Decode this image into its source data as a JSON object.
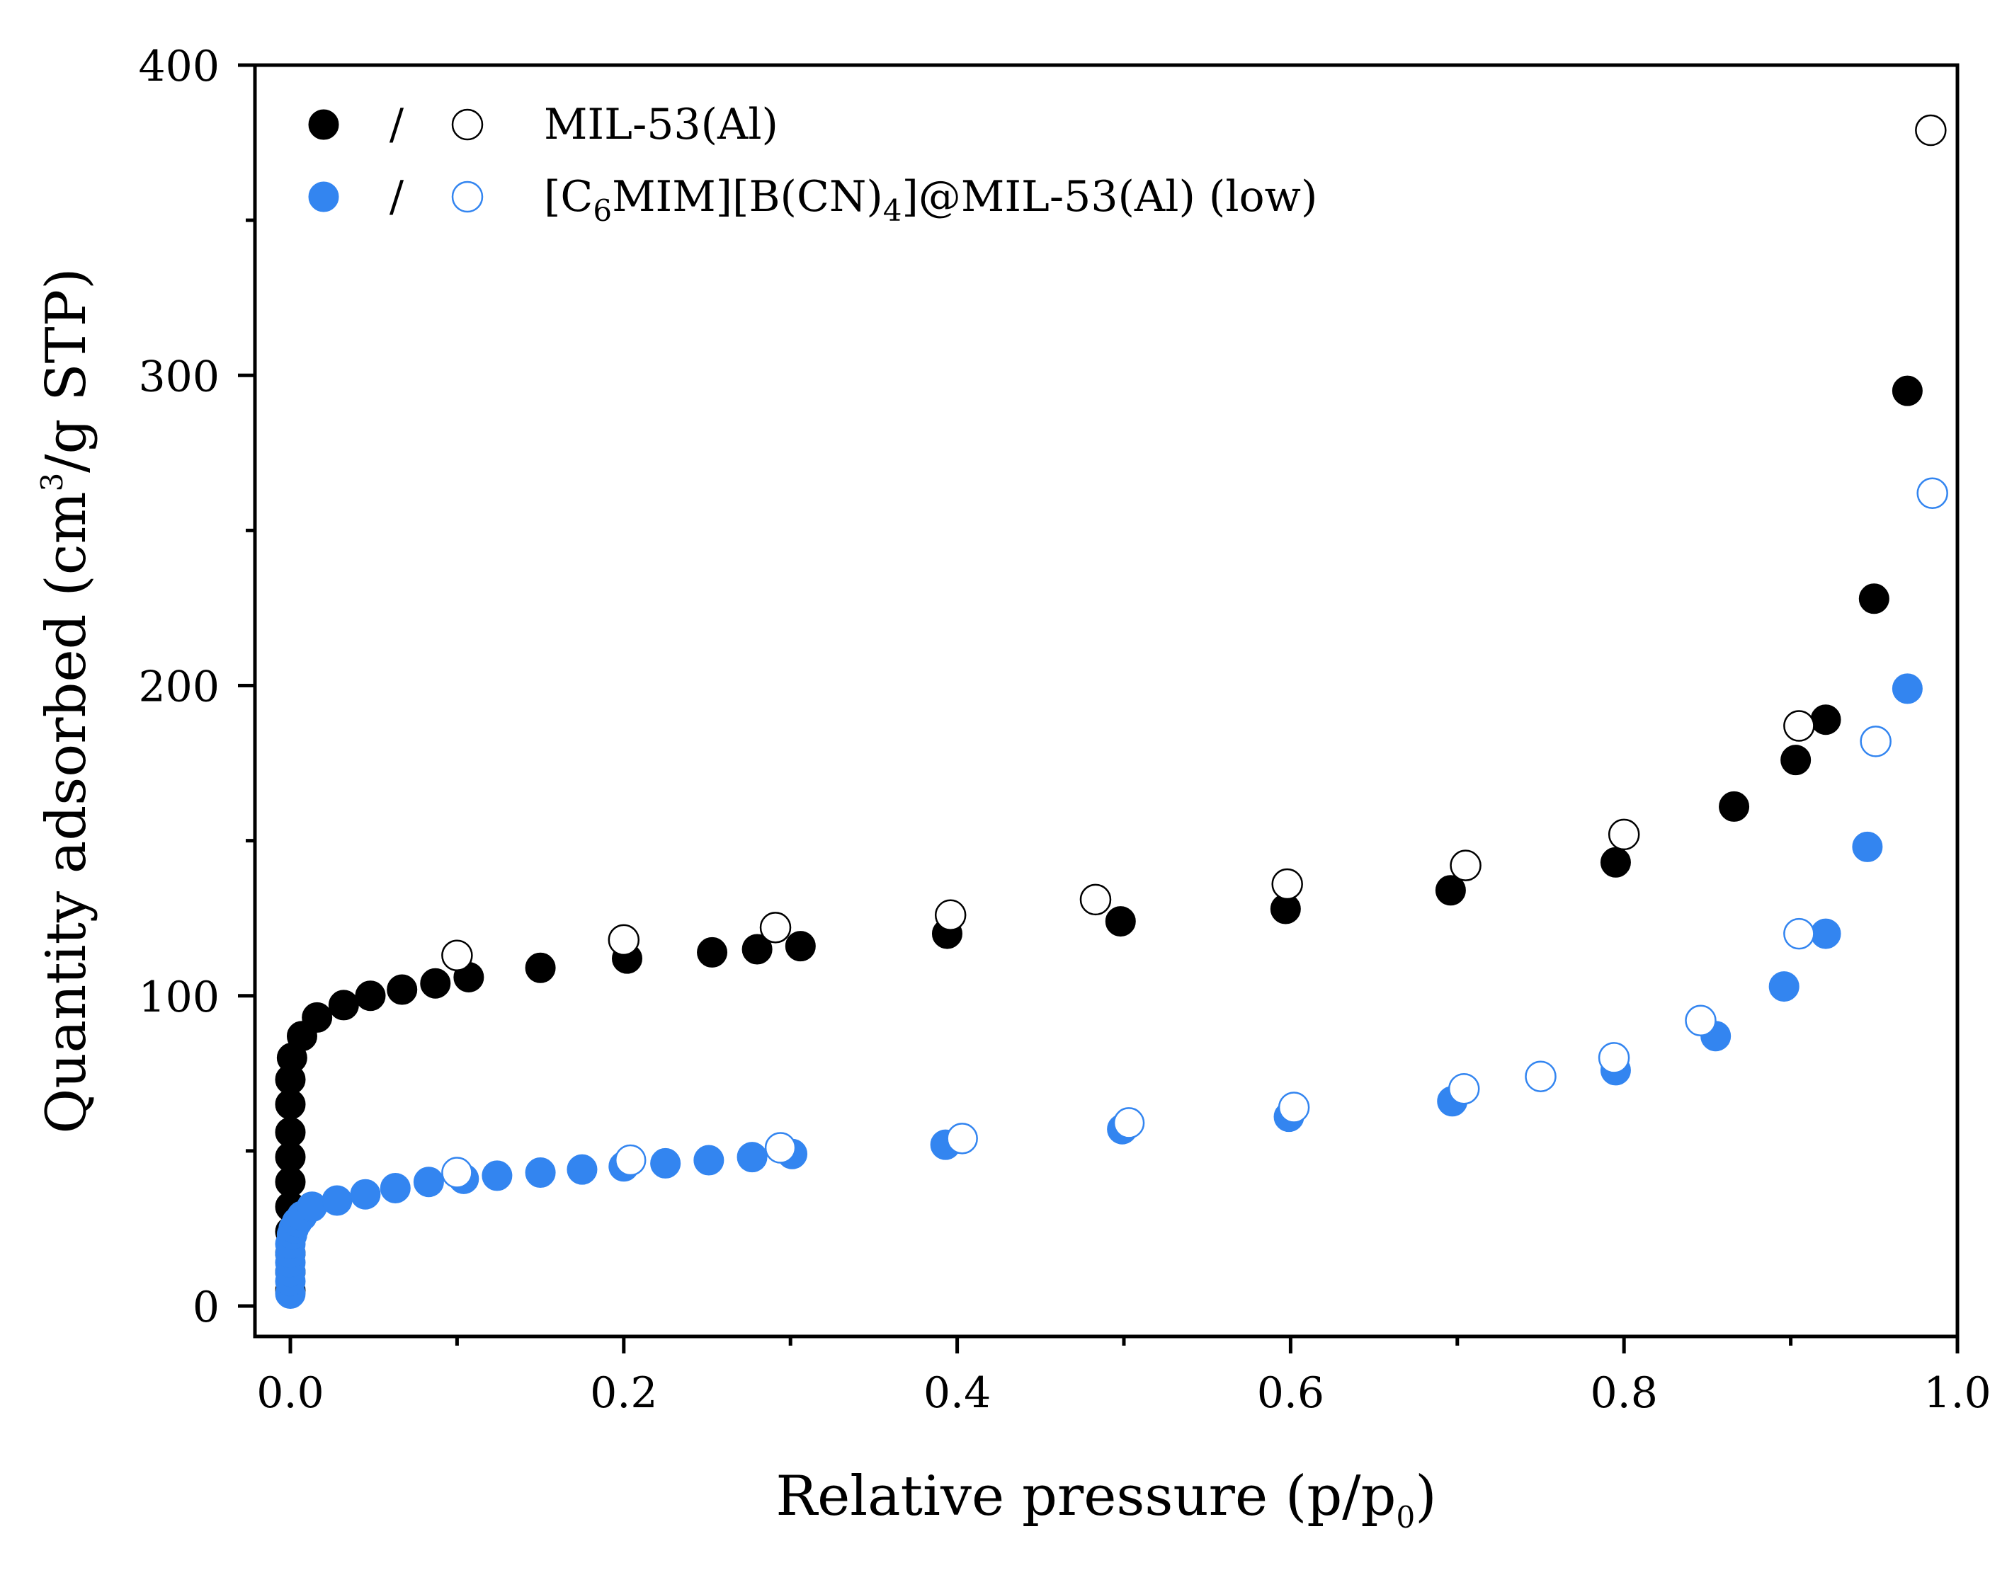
{
  "chart_data": {
    "type": "scatter",
    "title": "",
    "xlabel": {
      "main": "Relative pressure (p/p",
      "sub": "0",
      "end": ")"
    },
    "ylabel": {
      "main": "Quantity adsorbed  (cm",
      "sup": "3",
      "end": "/g STP)"
    },
    "xlim": [
      0.0,
      1.0
    ],
    "ylim": [
      0,
      400
    ],
    "xticks": [
      {
        "value": 0.0,
        "label": "0.0"
      },
      {
        "value": 0.2,
        "label": "0.2"
      },
      {
        "value": 0.4,
        "label": "0.4"
      },
      {
        "value": 0.6,
        "label": "0.6"
      },
      {
        "value": 0.8,
        "label": "0.8"
      },
      {
        "value": 1.0,
        "label": "1.0"
      }
    ],
    "yticks": [
      {
        "value": 0,
        "label": "0"
      },
      {
        "value": 100,
        "label": "100"
      },
      {
        "value": 200,
        "label": "200"
      },
      {
        "value": 300,
        "label": "300"
      },
      {
        "value": 400,
        "label": "400"
      }
    ],
    "grid": false,
    "legend_position": "top-left",
    "legend": [
      {
        "separator": "/",
        "label_parts": [
          {
            "t": "MIL-53(Al)",
            "s": ""
          }
        ]
      },
      {
        "separator": "/",
        "label_parts": [
          {
            "t": "[C",
            "s": ""
          },
          {
            "t": "6",
            "s": "sub"
          },
          {
            "t": "MIM][B(CN)",
            "s": ""
          },
          {
            "t": "4",
            "s": "sub"
          },
          {
            "t": "]@MIL-53(Al) (low)",
            "s": ""
          }
        ]
      }
    ],
    "series": [
      {
        "name": "MIL-53(Al) adsorption",
        "color": "#000000",
        "filled": true,
        "points": [
          [
            0.0,
            5
          ],
          [
            0.0,
            11
          ],
          [
            0.0,
            17
          ],
          [
            0.0,
            24
          ],
          [
            0.0,
            32
          ],
          [
            0.0,
            40
          ],
          [
            0.0,
            48
          ],
          [
            0.0,
            56
          ],
          [
            0.0,
            65
          ],
          [
            0.0,
            73
          ],
          [
            0.001,
            80
          ],
          [
            0.007,
            87
          ],
          [
            0.016,
            93
          ],
          [
            0.032,
            97
          ],
          [
            0.048,
            100
          ],
          [
            0.067,
            102
          ],
          [
            0.087,
            104
          ],
          [
            0.107,
            106
          ],
          [
            0.15,
            109
          ],
          [
            0.202,
            112
          ],
          [
            0.253,
            114
          ],
          [
            0.28,
            115
          ],
          [
            0.306,
            116
          ],
          [
            0.394,
            120
          ],
          [
            0.498,
            124
          ],
          [
            0.597,
            128
          ],
          [
            0.696,
            134
          ],
          [
            0.795,
            143
          ],
          [
            0.866,
            161
          ],
          [
            0.903,
            176
          ],
          [
            0.921,
            189
          ],
          [
            0.95,
            228
          ],
          [
            0.97,
            295
          ]
        ]
      },
      {
        "name": "MIL-53(Al) desorption",
        "color": "#000000",
        "filled": false,
        "points": [
          [
            0.1,
            113
          ],
          [
            0.2,
            118
          ],
          [
            0.291,
            122
          ],
          [
            0.396,
            126
          ],
          [
            0.483,
            131
          ],
          [
            0.598,
            136
          ],
          [
            0.705,
            142
          ],
          [
            0.8,
            152
          ],
          [
            0.905,
            187
          ],
          [
            0.984,
            379
          ]
        ]
      },
      {
        "name": "[C6MIM][B(CN)4]@MIL-53(Al) (low) adsorption",
        "color": "#3385f0",
        "filled": true,
        "points": [
          [
            0.0,
            4
          ],
          [
            0.0,
            8
          ],
          [
            0.0,
            11
          ],
          [
            0.0,
            14
          ],
          [
            0.0,
            17
          ],
          [
            0.0,
            20
          ],
          [
            0.001,
            23
          ],
          [
            0.002,
            25
          ],
          [
            0.004,
            27
          ],
          [
            0.007,
            29
          ],
          [
            0.013,
            32
          ],
          [
            0.028,
            34
          ],
          [
            0.045,
            36
          ],
          [
            0.063,
            38
          ],
          [
            0.083,
            40
          ],
          [
            0.104,
            41
          ],
          [
            0.124,
            42
          ],
          [
            0.15,
            43
          ],
          [
            0.175,
            44
          ],
          [
            0.2,
            45
          ],
          [
            0.225,
            46
          ],
          [
            0.251,
            47
          ],
          [
            0.277,
            48
          ],
          [
            0.301,
            49
          ],
          [
            0.393,
            52
          ],
          [
            0.499,
            57
          ],
          [
            0.599,
            61
          ],
          [
            0.697,
            66
          ],
          [
            0.795,
            76
          ],
          [
            0.855,
            87
          ],
          [
            0.896,
            103
          ],
          [
            0.921,
            120
          ],
          [
            0.946,
            148
          ],
          [
            0.97,
            199
          ]
        ]
      },
      {
        "name": "[C6MIM][B(CN)4]@MIL-53(Al) (low) desorption",
        "color": "#3385f0",
        "filled": false,
        "points": [
          [
            0.1,
            43
          ],
          [
            0.204,
            47
          ],
          [
            0.294,
            51
          ],
          [
            0.403,
            54
          ],
          [
            0.503,
            59
          ],
          [
            0.602,
            64
          ],
          [
            0.704,
            70
          ],
          [
            0.75,
            74
          ],
          [
            0.794,
            80
          ],
          [
            0.846,
            92
          ],
          [
            0.905,
            120
          ],
          [
            0.951,
            182
          ],
          [
            0.985,
            262
          ]
        ]
      }
    ]
  }
}
